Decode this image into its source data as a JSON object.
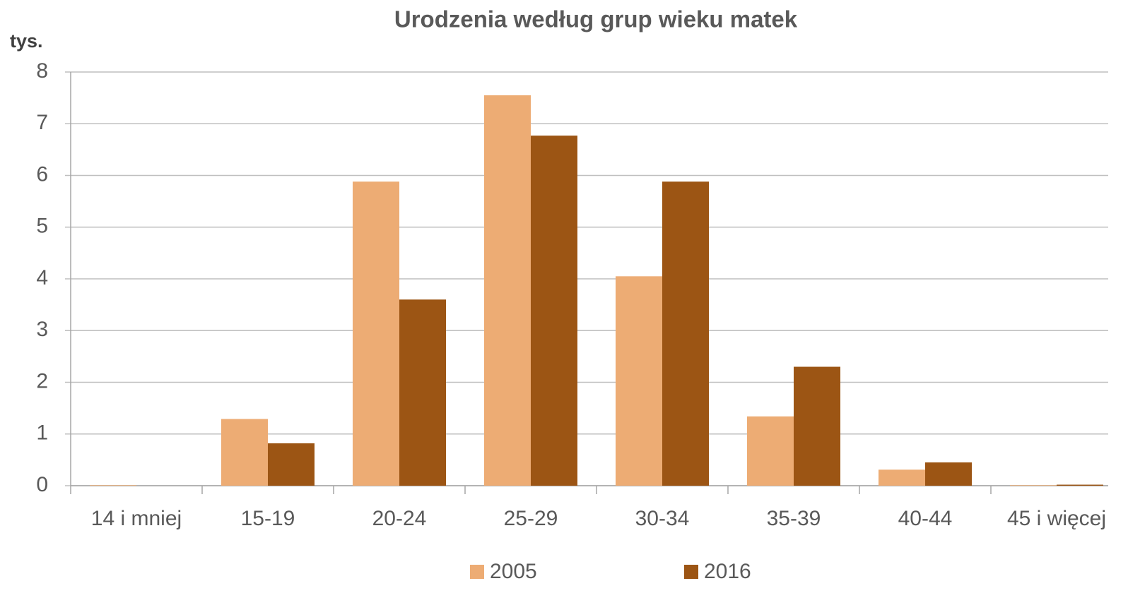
{
  "chart_data": {
    "type": "bar",
    "title": "Urodzenia według grup wieku matek",
    "y_label": "tys.",
    "categories": [
      "14 i mniej",
      "15-19",
      "20-24",
      "25-29",
      "30-34",
      "35-39",
      "40-44",
      "45 i więcej"
    ],
    "series": [
      {
        "name": "2005",
        "color": "#edac74",
        "values": [
          0.01,
          1.29,
          5.88,
          7.55,
          4.05,
          1.34,
          0.31,
          0.01
        ]
      },
      {
        "name": "2016",
        "color": "#9c5514",
        "values": [
          0,
          0.82,
          3.6,
          6.77,
          5.88,
          2.3,
          0.45,
          0.02
        ]
      }
    ],
    "ylim": [
      0,
      8
    ],
    "yticks": [
      0,
      1,
      2,
      3,
      4,
      5,
      6,
      7,
      8
    ],
    "grid": true,
    "legend": "bottom"
  }
}
